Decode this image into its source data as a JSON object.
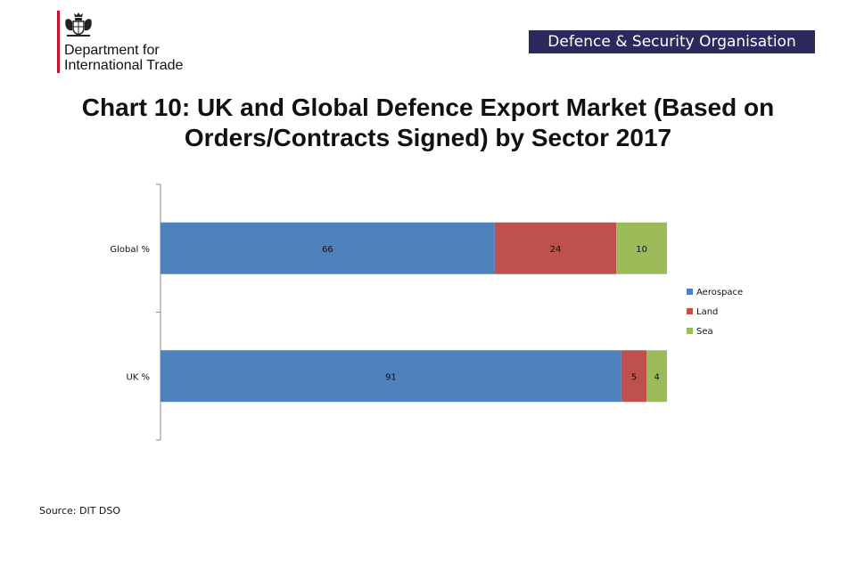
{
  "header": {
    "department_line1": "Department for",
    "department_line2": "International Trade",
    "banner": "Defence & Security Organisation",
    "crest_icon": "royal-crest-icon"
  },
  "chart_data": {
    "type": "bar",
    "orientation": "horizontal",
    "stacked": true,
    "title": "Chart 10: UK and Global Defence Export Market (Based on Orders/Contracts Signed) by Sector 2017",
    "categories": [
      "Global %",
      "UK %"
    ],
    "series": [
      {
        "name": "Aerospace",
        "values": [
          66,
          91
        ],
        "color": "#4f81bd"
      },
      {
        "name": "Land",
        "values": [
          24,
          5
        ],
        "color": "#c0504d"
      },
      {
        "name": "Sea",
        "values": [
          10,
          4
        ],
        "color": "#9bbb59"
      }
    ],
    "xlim": [
      0,
      100
    ],
    "data_labels": true,
    "grid": false,
    "legend_position": "right"
  },
  "footer": {
    "source": "Source: DIT  DSO"
  }
}
